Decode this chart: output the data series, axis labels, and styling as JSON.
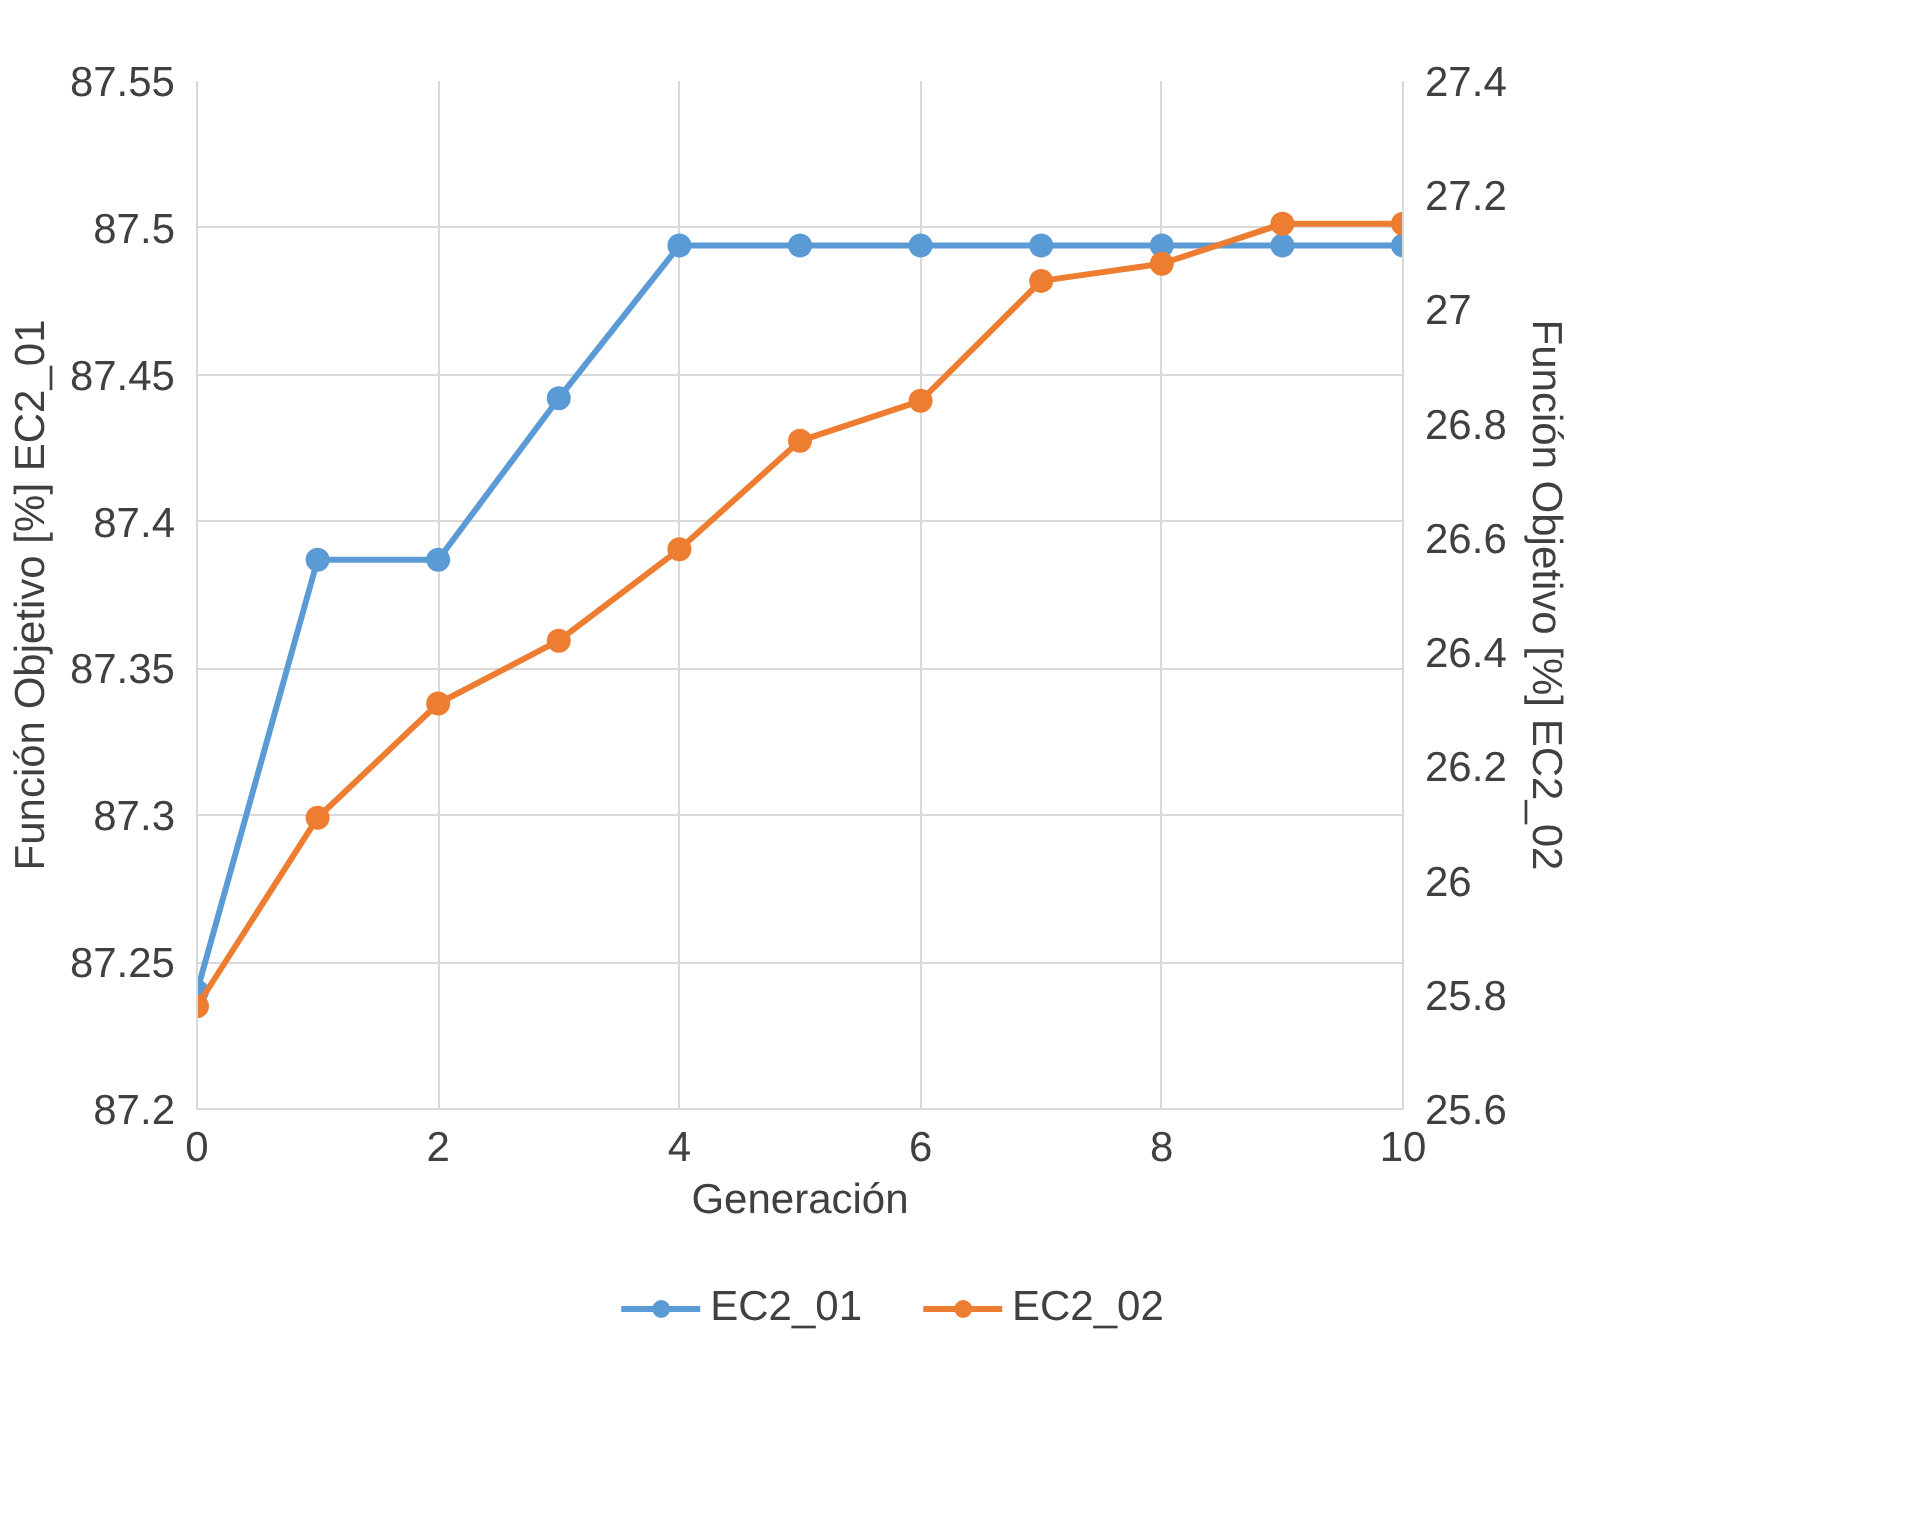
{
  "chart_data": {
    "type": "line",
    "xlabel": "Generación",
    "ylabel": "Función Objetivo [%] EC2_01",
    "y2label": "Función Objetivo [%] EC2_02",
    "x": [
      0,
      1,
      2,
      3,
      4,
      5,
      6,
      7,
      8,
      9,
      10
    ],
    "series": [
      {
        "name": "EC2_01",
        "color": "#5b9bd5",
        "values": [
          87.24,
          87.387,
          87.387,
          87.442,
          87.494,
          87.494,
          87.494,
          87.494,
          87.494,
          87.494,
          87.494
        ]
      },
      {
        "name": "EC2_02",
        "color": "#ed7d31",
        "axis": "y2",
        "values": [
          25.78,
          26.11,
          26.31,
          26.42,
          26.58,
          26.77,
          26.84,
          27.05,
          27.08,
          27.15,
          27.15
        ]
      }
    ],
    "xlim": [
      0,
      10
    ],
    "xticks": [
      0,
      2,
      4,
      6,
      8,
      10
    ],
    "ylim": [
      87.2,
      87.55
    ],
    "yticks": [
      87.2,
      87.25,
      87.3,
      87.35,
      87.4,
      87.45,
      87.5,
      87.55
    ],
    "y2lim": [
      25.6,
      27.4
    ],
    "y2ticks": [
      25.6,
      25.8,
      26,
      26.2,
      26.4,
      26.6,
      26.8,
      27,
      27.2,
      27.4
    ],
    "grid": true,
    "legend": "bottom",
    "marker": "circle",
    "line_style": "solid"
  }
}
